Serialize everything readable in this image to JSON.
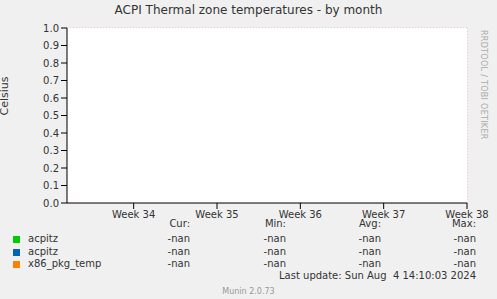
{
  "chart_data": {
    "type": "line",
    "title": "ACPI Thermal zone temperatures - by month",
    "ylabel": "Celsius",
    "xlim": [
      33.2,
      38.0
    ],
    "xticks": [
      {
        "value": 34,
        "label": "Week 34"
      },
      {
        "value": 35,
        "label": "Week 35"
      },
      {
        "value": 36,
        "label": "Week 36"
      },
      {
        "value": 37,
        "label": "Week 37"
      },
      {
        "value": 38,
        "label": "Week 38"
      }
    ],
    "ylim": [
      0,
      1
    ],
    "yticks": [
      {
        "value": 0,
        "label": "0.0"
      },
      0.1,
      0.2,
      0.3,
      0.4,
      0.5,
      0.6,
      0.7,
      0.8,
      0.9,
      {
        "value": 1,
        "label": "1.0"
      }
    ],
    "grid": true,
    "legend": "bottom",
    "x": [
      33.2,
      38.0
    ],
    "series": [
      {
        "name": "acpitz",
        "color": "#00cc00",
        "values": [
          null,
          null
        ],
        "stats": [
          "-nan",
          "-nan",
          "-nan",
          "-nan"
        ]
      },
      {
        "name": "acpitz",
        "color": "#0066b3",
        "values": [
          null,
          null
        ],
        "stats": [
          "-nan",
          "-nan",
          "-nan",
          "-nan"
        ]
      },
      {
        "name": "x86_pkg_temp",
        "color": "#ff8000",
        "values": [
          null,
          null
        ],
        "stats": [
          "-nan",
          "-nan",
          "-nan",
          "-nan"
        ]
      }
    ],
    "stats_header": [
      "Cur:",
      "Min:",
      "Avg:",
      "Max:"
    ],
    "footer": "Last update: Sun Aug  4 14:10:03 2024",
    "credit": "Munin 2.0.73",
    "watermark": "RRDTOOL / TOBI OETIKER"
  }
}
